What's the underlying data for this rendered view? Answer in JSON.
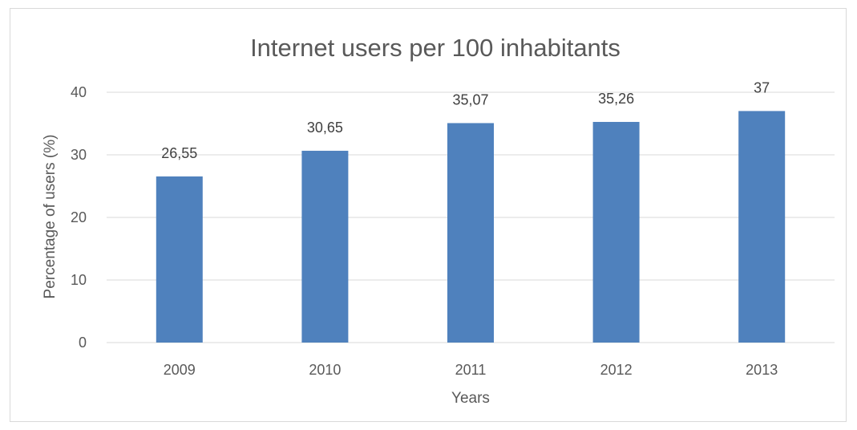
{
  "chart_data": {
    "type": "bar",
    "title": "Internet users per 100 inhabitants",
    "xlabel": "Years",
    "ylabel": "Percentage of users (%)",
    "categories": [
      "2009",
      "2010",
      "2011",
      "2012",
      "2013"
    ],
    "values": [
      26.55,
      30.65,
      35.07,
      35.26,
      37
    ],
    "value_labels": [
      "26,55",
      "30,65",
      "35,07",
      "35,26",
      "37"
    ],
    "ylim": [
      0,
      40
    ],
    "yticks": [
      "0",
      "10",
      "20",
      "30",
      "40"
    ],
    "grid": true,
    "legend": "none",
    "bar_color": "#4f81bd"
  }
}
